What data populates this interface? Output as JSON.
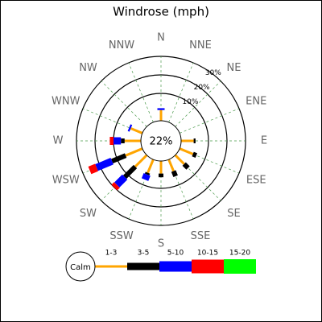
{
  "chart_data": {
    "type": "windrose",
    "title": "Windrose (mph)",
    "directions": [
      "N",
      "NNE",
      "NE",
      "ENE",
      "E",
      "ESE",
      "SE",
      "SSE",
      "S",
      "SSW",
      "SW",
      "WSW",
      "W",
      "WNW",
      "NW",
      "NNW"
    ],
    "series": [
      {
        "name": "1-3",
        "color": "#ffa500",
        "values": [
          1,
          0,
          0,
          0,
          2,
          3,
          2,
          2,
          2,
          3,
          4,
          5,
          4,
          2,
          0,
          0
        ]
      },
      {
        "name": "3-5",
        "color": "#000000",
        "values": [
          0,
          0,
          0,
          0,
          1,
          2,
          3,
          3,
          2,
          1,
          8,
          8,
          2,
          0,
          0,
          0
        ]
      },
      {
        "name": "5-10",
        "color": "#0000ff",
        "values": [
          1,
          0,
          0,
          0,
          0,
          0,
          0,
          0,
          0,
          3,
          6,
          9,
          4,
          1,
          0,
          0
        ]
      },
      {
        "name": "10-15",
        "color": "#ff0000",
        "values": [
          0,
          0,
          0,
          0,
          0,
          0,
          0,
          0,
          0,
          0,
          2,
          4,
          2,
          0,
          0,
          0
        ]
      },
      {
        "name": "15-20",
        "color": "#00ff00",
        "values": [
          0,
          0,
          0,
          0,
          0,
          0,
          0,
          0,
          0,
          0,
          0,
          0,
          0,
          0,
          0,
          0
        ]
      }
    ],
    "calm_label": "Calm",
    "calm_value": 22,
    "calm_value_label": "22%",
    "rlim": [
      0,
      30
    ],
    "rticks": [
      {
        "value": 10,
        "label": "10%"
      },
      {
        "value": 20,
        "label": "20%"
      },
      {
        "value": 30,
        "label": "30%"
      }
    ],
    "grid": true
  }
}
